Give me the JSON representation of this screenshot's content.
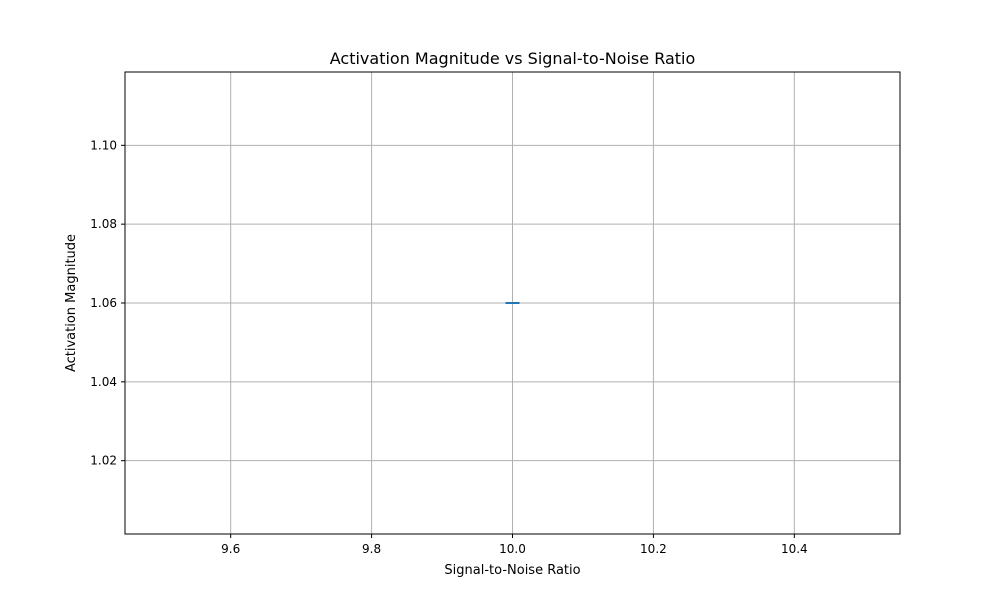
{
  "chart_data": {
    "type": "scatter",
    "title": "Activation Magnitude vs Signal-to-Noise Ratio",
    "xlabel": "Signal-to-Noise Ratio",
    "ylabel": "Activation Magnitude",
    "xlim": [
      9.45,
      10.55
    ],
    "ylim": [
      1.0014,
      1.1186
    ],
    "xticks": [
      9.6,
      9.8,
      10.0,
      10.2,
      10.4
    ],
    "xtick_labels": [
      "9.6",
      "9.8",
      "10.0",
      "10.2",
      "10.4"
    ],
    "yticks": [
      1.02,
      1.04,
      1.06,
      1.08,
      1.1
    ],
    "ytick_labels": [
      "1.02",
      "1.04",
      "1.06",
      "1.08",
      "1.10"
    ],
    "grid": true,
    "points": [
      {
        "x": 10.0,
        "y": 1.06
      }
    ],
    "marker": "hline",
    "series_color": "#1f77b4"
  }
}
